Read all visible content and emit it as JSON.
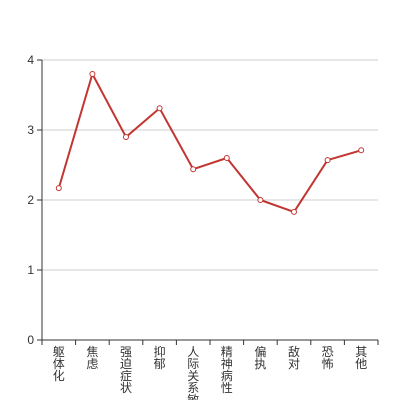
{
  "colors": {
    "line": "#c23531",
    "grid": "#cccccc",
    "axis": "#333333",
    "point_fill": "#ffffff"
  },
  "chart_data": {
    "type": "line",
    "categories": [
      "躯体化",
      "焦虑",
      "强迫症状",
      "抑郁",
      "人际关系敏",
      "精神病性",
      "偏执",
      "敌对",
      "恐怖",
      "其他"
    ],
    "series": [
      {
        "values": [
          2.17,
          3.8,
          2.9,
          3.31,
          2.44,
          2.6,
          2.0,
          1.83,
          2.57,
          2.71
        ]
      }
    ],
    "y_ticks": [
      0,
      1,
      2,
      3,
      4
    ],
    "ylim": [
      0,
      4
    ],
    "grid": true,
    "legend": false,
    "title": "",
    "xlabel": "",
    "ylabel": ""
  }
}
